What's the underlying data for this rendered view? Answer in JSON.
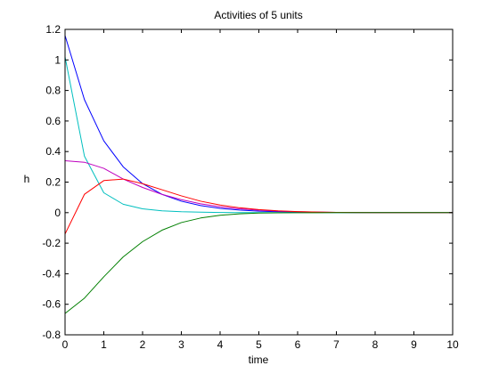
{
  "chart_data": {
    "type": "line",
    "title": "Activities of 5 units",
    "xlabel": "time",
    "ylabel": "h",
    "xlim": [
      0,
      10
    ],
    "ylim": [
      -0.8,
      1.2
    ],
    "xticks": [
      0,
      1,
      2,
      3,
      4,
      5,
      6,
      7,
      8,
      9,
      10
    ],
    "yticks": [
      -0.8,
      -0.6,
      -0.4,
      -0.2,
      0,
      0.2,
      0.4,
      0.6,
      0.8,
      1,
      1.2
    ],
    "xtick_labels": [
      "0",
      "1",
      "2",
      "3",
      "4",
      "5",
      "6",
      "7",
      "8",
      "9",
      "10"
    ],
    "ytick_labels": [
      "-0.8",
      "-0.6",
      "-0.4",
      "-0.2",
      "0",
      "0.2",
      "0.4",
      "0.6",
      "0.8",
      "1",
      "1.2"
    ],
    "grid": false,
    "legend": "none",
    "x": [
      0,
      0.5,
      1,
      1.5,
      2,
      2.5,
      3,
      3.5,
      4,
      4.5,
      5,
      5.5,
      6,
      6.5,
      7,
      7.5,
      8,
      8.5,
      9,
      9.5,
      10
    ],
    "series": [
      {
        "color": "#0000ff",
        "values": [
          1.16,
          0.74,
          0.47,
          0.3,
          0.19,
          0.12,
          0.075,
          0.046,
          0.028,
          0.017,
          0.01,
          0.006,
          0.004,
          0.002,
          0.001,
          0.0006,
          0.0003,
          0.0002,
          0.0001,
          0.0,
          0.0
        ]
      },
      {
        "color": "#00bfbf",
        "values": [
          1.02,
          0.37,
          0.13,
          0.055,
          0.025,
          0.012,
          0.006,
          0.003,
          0.001,
          0.0005,
          0.0002,
          0.0001,
          0.0,
          0.0,
          0.0,
          0.0,
          0.0,
          0.0,
          0.0,
          0.0,
          0.0
        ]
      },
      {
        "color": "#bf00bf",
        "values": [
          0.34,
          0.33,
          0.29,
          0.22,
          0.165,
          0.12,
          0.085,
          0.058,
          0.038,
          0.025,
          0.016,
          0.01,
          0.006,
          0.004,
          0.002,
          0.001,
          0.0006,
          0.0003,
          0.0002,
          0.0001,
          0.0
        ]
      },
      {
        "color": "#ff0000",
        "values": [
          -0.14,
          0.12,
          0.21,
          0.22,
          0.19,
          0.15,
          0.11,
          0.075,
          0.05,
          0.032,
          0.02,
          0.012,
          0.007,
          0.004,
          0.002,
          0.001,
          0.0005,
          0.0002,
          0.0001,
          0.0,
          0.0
        ]
      },
      {
        "color": "#007f00",
        "values": [
          -0.66,
          -0.56,
          -0.42,
          -0.29,
          -0.19,
          -0.115,
          -0.065,
          -0.035,
          -0.017,
          -0.008,
          -0.003,
          -0.001,
          -0.0004,
          -0.0001,
          0.0,
          0.0,
          0.0,
          0.0,
          0.0,
          0.0,
          0.0
        ]
      }
    ]
  }
}
